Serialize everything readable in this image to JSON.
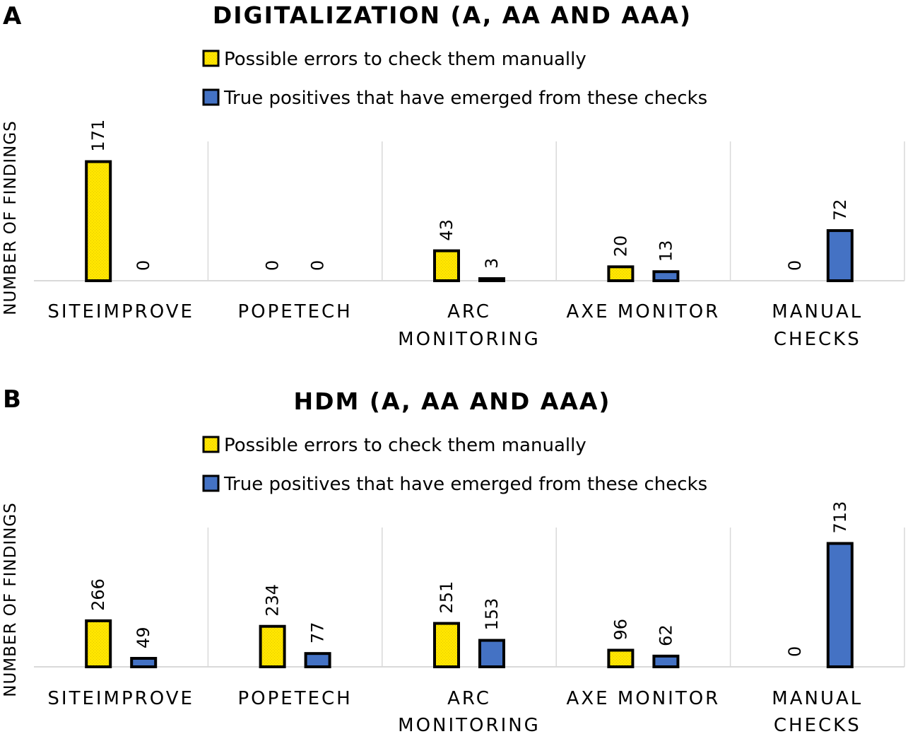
{
  "chart_data": [
    {
      "type": "bar",
      "panel": "A",
      "title": "DIGITALIZATION (A, AA AND AAA)",
      "ylabel": "NUMBER OF FINDINGS",
      "xlabel": "",
      "categories": [
        [
          "SITEIMPROVE"
        ],
        [
          "POPETECH"
        ],
        [
          "ARC",
          "MONITORING"
        ],
        [
          "AXE MONITOR"
        ],
        [
          "MANUAL",
          "CHECKS"
        ]
      ],
      "series": [
        {
          "name": "Possible errors to check them manually",
          "color": "#FFE600",
          "values": [
            171,
            0,
            43,
            20,
            0
          ]
        },
        {
          "name": "True positives that have emerged from these checks",
          "color": "#4472C4",
          "values": [
            0,
            0,
            3,
            13,
            72
          ]
        }
      ],
      "ylim": [
        0,
        200
      ],
      "grid": false,
      "legend": "top-center"
    },
    {
      "type": "bar",
      "panel": "B",
      "title": "HDM (A, AA AND AAA)",
      "ylabel": "NUMBER OF FINDINGS",
      "xlabel": "",
      "categories": [
        [
          "SITEIMPROVE"
        ],
        [
          "POPETECH"
        ],
        [
          "ARC",
          "MONITORING"
        ],
        [
          "AXE MONITOR"
        ],
        [
          "MANUAL",
          "CHECKS"
        ]
      ],
      "series": [
        {
          "name": "Possible errors to check them manually",
          "color": "#FFE600",
          "values": [
            266,
            234,
            251,
            96,
            0
          ]
        },
        {
          "name": "True positives that have emerged from these checks",
          "color": "#4472C4",
          "values": [
            49,
            77,
            153,
            62,
            713
          ]
        }
      ],
      "ylim": [
        0,
        805
      ],
      "grid": false,
      "legend": "top-center"
    }
  ]
}
